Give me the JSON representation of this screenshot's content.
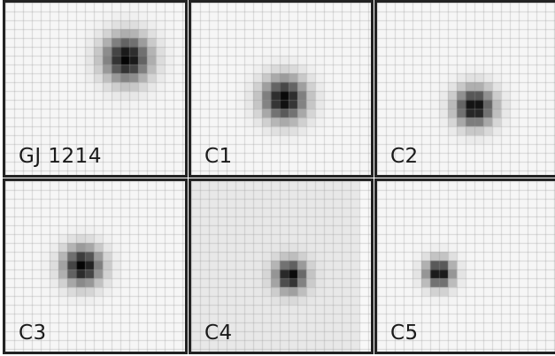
{
  "panels": [
    {
      "label": "GJ 1214"
    },
    {
      "label": "C1"
    },
    {
      "label": "C2"
    },
    {
      "label": "C3"
    },
    {
      "label": "C4"
    },
    {
      "label": "C5"
    }
  ]
}
